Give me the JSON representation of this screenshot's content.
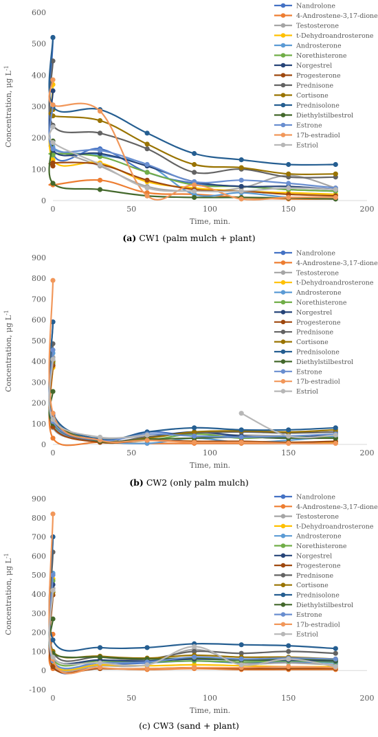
{
  "colors": {
    "Nandrolone": "#4472C4",
    "4-Androstene-3,17-dione": "#ED7D31",
    "Testosterone": "#A5A5A5",
    "t-Dehydroandrosterone": "#FFC000",
    "Androsterone": "#5B9BD5",
    "Norethisterone": "#70AD47",
    "Norgestrel": "#264478",
    "Progesterone": "#9E480E",
    "Prednisone": "#636363",
    "Cortisone": "#997300",
    "Prednisolone": "#255E91",
    "Diethylstilbestrol": "#43682B",
    "Estrone": "#698ED0",
    "17b-estradiol": "#F1975A",
    "Estriol": "#B7B7B7"
  },
  "chart_data": [
    {
      "type": "line",
      "caption_letter": "(a)",
      "caption_rest": "CW1 (palm mulch + plant)",
      "xlabel": "Time, min.",
      "ylabel_main": "Concentration, μg L",
      "ylabel_sup": "-1",
      "xlim": [
        0,
        200
      ],
      "ylim": [
        0,
        600
      ],
      "xticks": [
        0,
        50,
        100,
        150,
        200
      ],
      "yticks": [
        0,
        100,
        200,
        300,
        400,
        500,
        600
      ],
      "x": [
        0,
        0,
        30,
        60,
        90,
        120,
        150,
        180
      ],
      "series": [
        {
          "name": "Nandrolone",
          "values": [
            520,
            150,
            165,
            90,
            55,
            45,
            35,
            30
          ]
        },
        {
          "name": "4-Androstene-3,17-dione",
          "values": [
            55,
            50,
            65,
            25,
            20,
            10,
            5,
            5
          ]
        },
        {
          "name": "Testosterone",
          "values": [
            180,
            165,
            110,
            45,
            30,
            40,
            80,
            40
          ]
        },
        {
          "name": "t-Dehydroandrosterone",
          "values": [
            370,
            130,
            120,
            60,
            40,
            30,
            25,
            20
          ]
        },
        {
          "name": "Androsterone",
          "values": [
            300,
            170,
            145,
            115,
            20,
            25,
            10,
            5
          ]
        },
        {
          "name": "Norethisterone",
          "values": [
            145,
            150,
            140,
            90,
            50,
            45,
            35,
            30
          ]
        },
        {
          "name": "Norgestrel",
          "values": [
            350,
            160,
            150,
            110,
            60,
            45,
            45,
            35
          ]
        },
        {
          "name": "Progesterone",
          "values": [
            110,
            120,
            115,
            65,
            35,
            30,
            20,
            15
          ]
        },
        {
          "name": "Prednisone",
          "values": [
            445,
            240,
            215,
            165,
            90,
            100,
            75,
            75
          ]
        },
        {
          "name": "Cortisone",
          "values": [
            290,
            270,
            255,
            180,
            115,
            105,
            85,
            85
          ]
        },
        {
          "name": "Prednisolone",
          "values": [
            520,
            300,
            290,
            215,
            150,
            130,
            115,
            115
          ]
        },
        {
          "name": "Diethylstilbestrol",
          "values": [
            190,
            55,
            35,
            15,
            10,
            10,
            8,
            5
          ]
        },
        {
          "name": "Estrone",
          "values": [
            305,
            165,
            160,
            115,
            60,
            65,
            55,
            40
          ]
        },
        {
          "name": "17b-estradiol",
          "values": [
            385,
            305,
            285,
            15,
            50,
            5,
            10,
            10
          ]
        },
        {
          "name": "Estriol",
          "values": [
            235,
            185,
            115,
            40,
            30,
            30,
            40,
            35
          ]
        }
      ]
    },
    {
      "type": "line",
      "caption_letter": "(b)",
      "caption_rest": "CW2 (only palm mulch)",
      "xlabel": "Time, min.",
      "ylabel_main": "Concentration, μg L",
      "ylabel_sup": "-1",
      "xlim": [
        0,
        200
      ],
      "ylim": [
        0,
        900
      ],
      "xticks": [
        0,
        50,
        100,
        150,
        200
      ],
      "yticks": [
        0,
        100,
        200,
        300,
        400,
        500,
        600,
        700,
        800,
        900
      ],
      "x": [
        0,
        0,
        30,
        60,
        90,
        120,
        150,
        180
      ],
      "series": [
        {
          "name": "Nandrolone",
          "values": [
            590,
            140,
            15,
            60,
            40,
            40,
            35,
            30
          ]
        },
        {
          "name": "4-Androstene-3,17-dione",
          "values": [
            380,
            30,
            10,
            5,
            5,
            5,
            5,
            5
          ]
        },
        {
          "name": "Testosterone",
          "values": [
            420,
            80,
            30,
            40,
            50,
            45,
            40,
            30
          ]
        },
        {
          "name": "t-Dehydroandrosterone",
          "values": [
            370,
            90,
            20,
            20,
            15,
            10,
            10,
            10
          ]
        },
        {
          "name": "Androsterone",
          "values": [
            440,
            95,
            20,
            5,
            30,
            10,
            20,
            40
          ]
        },
        {
          "name": "Norethisterone",
          "values": [
            390,
            100,
            20,
            20,
            50,
            30,
            40,
            30
          ]
        },
        {
          "name": "Norgestrel",
          "values": [
            400,
            110,
            15,
            35,
            60,
            40,
            30,
            50
          ]
        },
        {
          "name": "Progesterone",
          "values": [
            380,
            85,
            10,
            20,
            15,
            15,
            10,
            15
          ]
        },
        {
          "name": "Prednisone",
          "values": [
            485,
            110,
            15,
            35,
            55,
            60,
            55,
            60
          ]
        },
        {
          "name": "Cortisone",
          "values": [
            400,
            120,
            15,
            30,
            60,
            65,
            60,
            70
          ]
        },
        {
          "name": "Prednisolone",
          "values": [
            590,
            150,
            25,
            60,
            80,
            70,
            70,
            80
          ]
        },
        {
          "name": "Diethylstilbestrol",
          "values": [
            255,
            100,
            15,
            25,
            30,
            35,
            30,
            30
          ]
        },
        {
          "name": "Estrone",
          "values": [
            455,
            110,
            20,
            50,
            40,
            35,
            40,
            50
          ]
        },
        {
          "name": "17b-estradiol",
          "values": [
            790,
            150,
            20,
            20,
            10,
            10,
            5,
            5
          ]
        },
        {
          "name": "Estriol",
          "values": [
            410,
            120,
            35,
            45,
            null,
            150,
            40,
            45
          ]
        }
      ]
    },
    {
      "type": "line",
      "caption_letter": "(c)",
      "caption_rest": "CW3 (sand + plant)",
      "xlabel": "Time, min.",
      "ylabel_main": "Concentration, μg L",
      "ylabel_sup": "-1",
      "xlim": [
        0,
        200
      ],
      "ylim": [
        -100,
        900
      ],
      "xticks": [
        0,
        50,
        100,
        150,
        200
      ],
      "yticks": [
        -100,
        0,
        100,
        200,
        300,
        400,
        500,
        600,
        700,
        800,
        900
      ],
      "x": [
        0,
        0,
        30,
        60,
        90,
        120,
        150,
        180
      ],
      "series": [
        {
          "name": "Nandrolone",
          "values": [
            700,
            40,
            30,
            40,
            50,
            40,
            45,
            40
          ]
        },
        {
          "name": "4-Androstene-3,17-dione",
          "values": [
            190,
            10,
            10,
            5,
            10,
            5,
            5,
            5
          ]
        },
        {
          "name": "Testosterone",
          "values": [
            430,
            30,
            25,
            30,
            110,
            40,
            40,
            30
          ]
        },
        {
          "name": "t-Dehydroandrosterone",
          "values": [
            480,
            40,
            30,
            25,
            30,
            25,
            20,
            20
          ]
        },
        {
          "name": "Androsterone",
          "values": [
            510,
            50,
            40,
            50,
            60,
            55,
            50,
            40
          ]
        },
        {
          "name": "Norethisterone",
          "values": [
            470,
            60,
            50,
            45,
            50,
            45,
            50,
            45
          ]
        },
        {
          "name": "Norgestrel",
          "values": [
            450,
            70,
            55,
            50,
            60,
            55,
            55,
            50
          ]
        },
        {
          "name": "Progesterone",
          "values": [
            395,
            20,
            10,
            10,
            15,
            10,
            10,
            10
          ]
        },
        {
          "name": "Prednisone",
          "values": [
            620,
            100,
            70,
            60,
            100,
            90,
            100,
            90
          ]
        },
        {
          "name": "Cortisone",
          "values": [
            410,
            100,
            75,
            65,
            80,
            70,
            70,
            60
          ]
        },
        {
          "name": "Prednisolone",
          "values": [
            700,
            160,
            120,
            120,
            140,
            135,
            130,
            115
          ]
        },
        {
          "name": "Diethylstilbestrol",
          "values": [
            270,
            90,
            70,
            60,
            65,
            55,
            60,
            55
          ]
        },
        {
          "name": "Estrone",
          "values": [
            500,
            50,
            40,
            45,
            70,
            60,
            65,
            60
          ]
        },
        {
          "name": "17b-estradiol",
          "values": [
            820,
            60,
            15,
            10,
            15,
            15,
            20,
            15
          ]
        },
        {
          "name": "Estriol",
          "values": [
            420,
            70,
            40,
            30,
            125,
            30,
            60,
            20
          ]
        }
      ]
    }
  ]
}
